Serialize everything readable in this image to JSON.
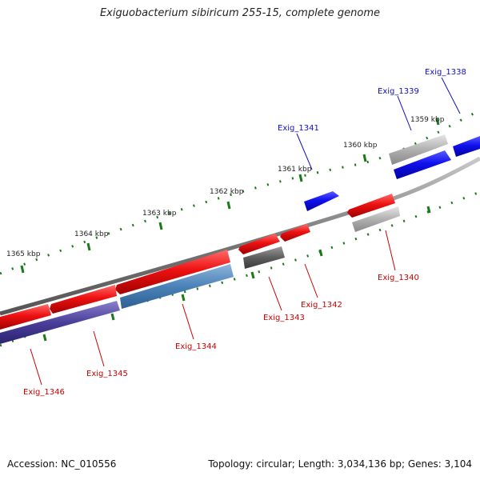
{
  "title": "Exiguobacterium sibiricum 255-15, complete genome",
  "footer": {
    "accession": "Accession: NC_010556",
    "summary": "Topology: circular; Length: 3,034,136 bp; Genes: 3,104"
  },
  "colors": {
    "forward_strand": "#1010e0",
    "reverse_strand": "#dd1020",
    "backbone": "#777777",
    "tick": "#1a7a1a",
    "pseudo_gray": "#a8a8a8",
    "dark_gray": "#555555",
    "steel_blue": "#4a82b8",
    "navy": "#4a3f9a",
    "forward_label": "#1010c0",
    "reverse_label": "#cc0000"
  },
  "scale_labels": [
    "1359 kbp",
    "1360 kbp",
    "1361 kbp",
    "1362 kbp",
    "1363 kbp",
    "1364 kbp",
    "1365 kbp"
  ],
  "gene_labels": [
    {
      "id": "label-exig-1338",
      "text": "Exig_1338",
      "strand": "forward"
    },
    {
      "id": "label-exig-1339",
      "text": "Exig_1339",
      "strand": "forward"
    },
    {
      "id": "label-exig-1341",
      "text": "Exig_1341",
      "strand": "forward"
    },
    {
      "id": "label-exig-1340",
      "text": "Exig_1340",
      "strand": "reverse"
    },
    {
      "id": "label-exig-1342",
      "text": "Exig_1342",
      "strand": "reverse"
    },
    {
      "id": "label-exig-1343",
      "text": "Exig_1343",
      "strand": "reverse"
    },
    {
      "id": "label-exig-1344",
      "text": "Exig_1344",
      "strand": "reverse"
    },
    {
      "id": "label-exig-1345",
      "text": "Exig_1345",
      "strand": "reverse"
    },
    {
      "id": "label-exig-1346",
      "text": "Exig_1346",
      "strand": "reverse"
    }
  ]
}
